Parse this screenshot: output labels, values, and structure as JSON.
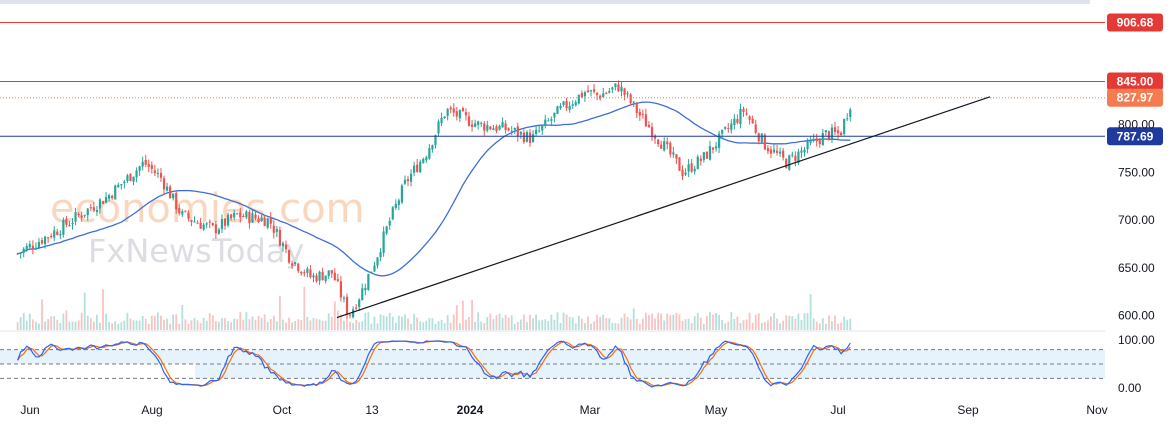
{
  "watermark": {
    "line1": "economies.com",
    "line2": "FxNewsToday"
  },
  "chart_data": {
    "type": "candlestick",
    "x_ticks": [
      "Jun",
      "Aug",
      "Oct",
      "13",
      "2024",
      "Mar",
      "May",
      "Jul",
      "Sep",
      "Nov"
    ],
    "y_ticks": [
      600,
      650,
      700,
      750,
      800
    ],
    "ylim": [
      585,
      925
    ],
    "price_levels": [
      {
        "value": 906.68,
        "label": "906.68",
        "color": "#e53935",
        "style": "solid"
      },
      {
        "value": 845.0,
        "label": "845.00",
        "color": "#e53935",
        "style": "solid"
      },
      {
        "value": 827.97,
        "label": "827.97",
        "color": "#f57c50",
        "style": "dotted"
      },
      {
        "value": 787.69,
        "label": "787.69",
        "color": "#1e3a9e",
        "style": "solid"
      }
    ],
    "trendline": {
      "from": [
        "Oct",
        598
      ],
      "to": [
        "Sep",
        829
      ]
    },
    "moving_average": {
      "color": "#3d6fd6"
    },
    "close_path": [
      [
        "2023-05-20",
        665
      ],
      [
        "2023-06-15",
        690
      ],
      [
        "2023-07-10",
        725
      ],
      [
        "2023-07-28",
        760
      ],
      [
        "2023-08-05",
        745
      ],
      [
        "2023-08-15",
        705
      ],
      [
        "2023-08-30",
        690
      ],
      [
        "2023-09-10",
        705
      ],
      [
        "2023-09-25",
        700
      ],
      [
        "2023-10-05",
        660
      ],
      [
        "2023-10-15",
        640
      ],
      [
        "2023-10-25",
        645
      ],
      [
        "2023-11-02",
        600
      ],
      [
        "2023-11-08",
        625
      ],
      [
        "2023-11-15",
        660
      ],
      [
        "2023-11-22",
        700
      ],
      [
        "2023-11-30",
        740
      ],
      [
        "2023-12-10",
        770
      ],
      [
        "2023-12-20",
        815
      ],
      [
        "2024-01-05",
        800
      ],
      [
        "2024-01-20",
        795
      ],
      [
        "2024-02-01",
        785
      ],
      [
        "2024-02-15",
        815
      ],
      [
        "2024-02-28",
        835
      ],
      [
        "2024-03-05",
        830
      ],
      [
        "2024-03-15",
        840
      ],
      [
        "2024-03-25",
        810
      ],
      [
        "2024-04-05",
        780
      ],
      [
        "2024-04-15",
        750
      ],
      [
        "2024-04-25",
        765
      ],
      [
        "2024-05-05",
        790
      ],
      [
        "2024-05-15",
        815
      ],
      [
        "2024-05-25",
        780
      ],
      [
        "2024-06-05",
        760
      ],
      [
        "2024-06-15",
        775
      ],
      [
        "2024-06-25",
        790
      ],
      [
        "2024-07-02",
        790
      ],
      [
        "2024-07-08",
        830
      ]
    ],
    "oscillator": {
      "type": "stochastic",
      "y_ticks": [
        "100.00",
        "0.00"
      ],
      "levels": [
        80,
        50,
        20
      ],
      "k_color": "#2962ff",
      "d_color": "#ff6d00"
    }
  }
}
